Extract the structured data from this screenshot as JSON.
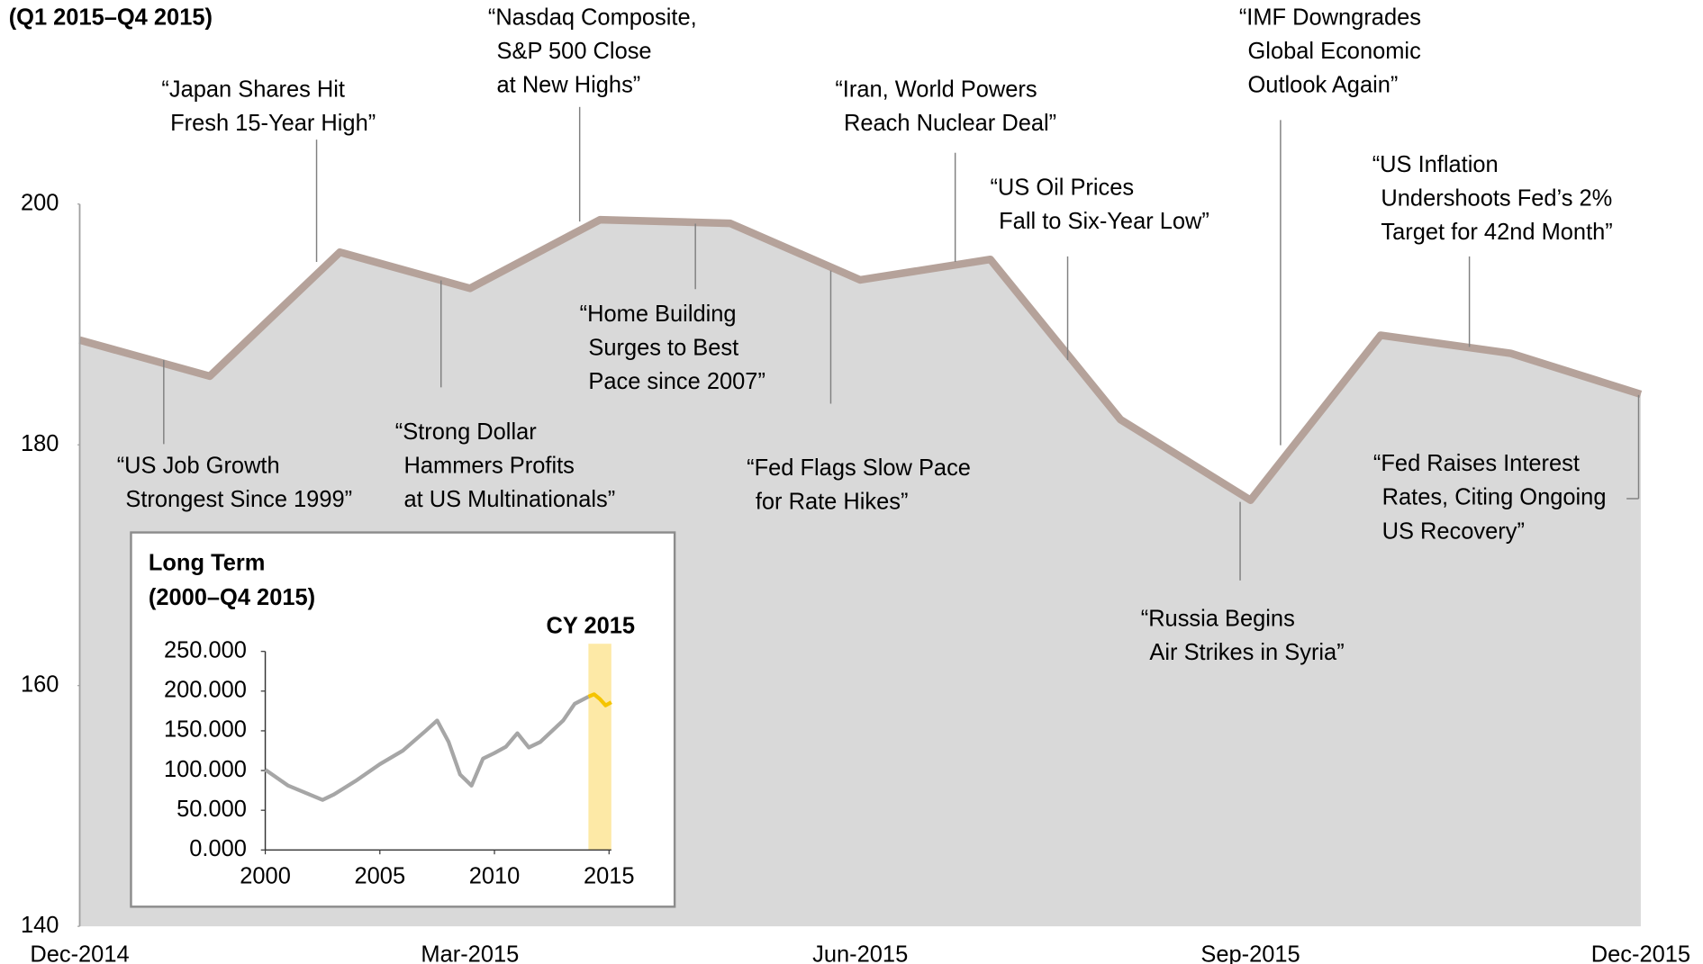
{
  "chart_data": [
    {
      "type": "area",
      "subtitle": "(Q1 2015–Q4 2015)",
      "categories": [
        "Dec-2014",
        null,
        null,
        "Mar-2015",
        null,
        null,
        "Jun-2015",
        null,
        null,
        "Sep-2015",
        null,
        null,
        "Dec-2015"
      ],
      "values": [
        188.7,
        185.7,
        196.0,
        193.0,
        198.7,
        198.4,
        193.7,
        195.4,
        182.1,
        175.4,
        189.1,
        187.6,
        184.2
      ],
      "color": "#b5a29a",
      "fill": "#d9d9d9",
      "ylim": [
        140,
        200
      ],
      "yticks": [
        140,
        160,
        180,
        200
      ],
      "annotations": [
        {
          "lines": [
            "“US Job Growth",
            "Strongest Since 1999”"
          ]
        },
        {
          "lines": [
            "“Japan Shares Hit",
            "Fresh 15-Year High”"
          ]
        },
        {
          "lines": [
            "“Strong Dollar",
            "Hammers Profits",
            "at US Multinationals”"
          ]
        },
        {
          "lines": [
            "“Nasdaq Composite,",
            "S&P 500 Close",
            "at New Highs”"
          ]
        },
        {
          "lines": [
            "“Home Building",
            "Surges to Best",
            "Pace since 2007”"
          ]
        },
        {
          "lines": [
            "“Fed Flags Slow Pace",
            "for Rate Hikes”"
          ]
        },
        {
          "lines": [
            "“Iran, World Powers",
            "Reach Nuclear Deal”"
          ]
        },
        {
          "lines": [
            "“US Oil Prices",
            "Fall to Six-Year Low”"
          ]
        },
        {
          "lines": [
            "“Russia Begins",
            "Air Strikes in Syria”"
          ]
        },
        {
          "lines": [
            "“IMF Downgrades",
            "Global Economic",
            "Outlook Again”"
          ]
        },
        {
          "lines": [
            "“US Inflation",
            "Undershoots Fed’s 2%",
            "Target for 42nd Month”"
          ]
        },
        {
          "lines": [
            "“Fed Raises Interest",
            "Rates, Citing Ongoing",
            "US Recovery”"
          ]
        }
      ]
    },
    {
      "type": "line",
      "title": "Long Term",
      "subtitle": "(2000–Q4 2015)",
      "highlight_label": "CY 2015",
      "highlight": [
        2014.1,
        2015.1
      ],
      "highlight_color": "#fde9a6",
      "xlim": [
        2000,
        2015.1
      ],
      "xticks": [
        2000,
        2005,
        2010,
        2015
      ],
      "ylim": [
        0,
        250
      ],
      "yticks": [
        {
          "value": 0,
          "label": "0.000"
        },
        {
          "value": 50,
          "label": "50.000"
        },
        {
          "value": 100,
          "label": "100.000"
        },
        {
          "value": 150,
          "label": "150.000"
        },
        {
          "value": 200,
          "label": "200.000"
        },
        {
          "value": 250,
          "label": "250.000"
        }
      ],
      "series": [
        {
          "color": "#a6a6a6",
          "x": [
            2000,
            2001,
            2002.5,
            2003,
            2004,
            2005,
            2006,
            2007,
            2007.5,
            2008,
            2008.5,
            2009,
            2009.5,
            2010,
            2010.5,
            2011,
            2011.5,
            2012,
            2013,
            2013.5,
            2014.1
          ],
          "values": [
            101,
            81,
            63,
            70,
            88,
            108,
            125,
            150,
            163,
            136,
            95,
            81,
            115,
            122,
            130,
            147,
            129,
            136,
            163,
            184,
            193
          ]
        },
        {
          "color": "#f5c400",
          "x": [
            2014.1,
            2014.35,
            2014.6,
            2014.85,
            2015.1
          ],
          "values": [
            193,
            196,
            190,
            182,
            186
          ]
        }
      ]
    }
  ]
}
